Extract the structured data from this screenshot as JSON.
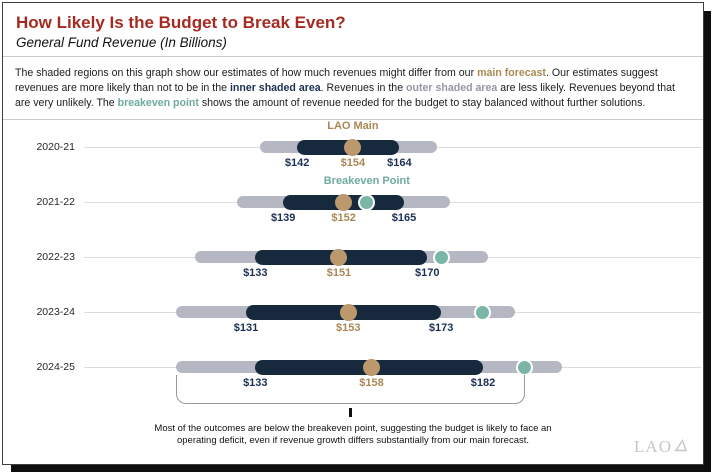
{
  "header": {
    "title": "How Likely Is the Budget to Break Even?",
    "subtitle": "General Fund Revenue (In Billions)"
  },
  "intro": {
    "segments": [
      {
        "text": "The shaded regions on this graph show our estimates of how much revenues might differ from our ",
        "style": "plain"
      },
      {
        "text": "main forecast",
        "style": "main"
      },
      {
        "text": ". Our estimates suggest revenues are more likely than not to be in the ",
        "style": "plain"
      },
      {
        "text": "inner shaded area",
        "style": "inner"
      },
      {
        "text": ". Revenues in the ",
        "style": "plain"
      },
      {
        "text": "outer shaded area",
        "style": "outer"
      },
      {
        "text": " are less likely. Revenues beyond that are very unlikely. The ",
        "style": "plain"
      },
      {
        "text": "breakeven point",
        "style": "breakeven"
      },
      {
        "text": " shows the amount of revenue needed for the budget to stay balanced without further solutions.",
        "style": "plain"
      }
    ]
  },
  "chart_data": {
    "type": "bar",
    "subtype": "horizontal-range-fan",
    "unit": "General Fund revenue, $ billions",
    "axis": {
      "orientation": "horizontal",
      "value_domain": [
        100,
        230
      ],
      "gridlines": false,
      "tick_labels": "none (values labeled on bars)"
    },
    "rows": [
      {
        "year": "2020-21",
        "annotation": {
          "text": "LAO Main",
          "color_role": "main",
          "anchor_value": 154
        },
        "outer_range_est": [
          134,
          172
        ],
        "inner_range": [
          142,
          164
        ],
        "main_forecast": 154,
        "breakeven_point_est": null,
        "labels": {
          "inner_min": "$142",
          "main": "$154",
          "inner_max": "$164"
        }
      },
      {
        "year": "2021-22",
        "annotation": {
          "text": "Breakeven Point",
          "color_role": "breakeven",
          "anchor_value": 157
        },
        "outer_range_est": [
          129,
          175
        ],
        "inner_range": [
          139,
          165
        ],
        "main_forecast": 152,
        "breakeven_point_est": 157,
        "labels": {
          "inner_min": "$139",
          "main": "$152",
          "inner_max": "$165"
        }
      },
      {
        "year": "2022-23",
        "annotation": null,
        "outer_range_est": [
          120,
          183
        ],
        "inner_range": [
          133,
          170
        ],
        "main_forecast": 151,
        "breakeven_point_est": 173,
        "labels": {
          "inner_min": "$133",
          "main": "$151",
          "inner_max": "$170"
        }
      },
      {
        "year": "2023-24",
        "annotation": null,
        "outer_range_est": [
          116,
          189
        ],
        "inner_range": [
          131,
          173
        ],
        "main_forecast": 153,
        "breakeven_point_est": 182,
        "labels": {
          "inner_min": "$131",
          "main": "$153",
          "inner_max": "$173"
        }
      },
      {
        "year": "2024-25",
        "annotation": null,
        "outer_range_est": [
          116,
          199
        ],
        "inner_range": [
          133,
          182
        ],
        "main_forecast": 158,
        "breakeven_point_est": 191,
        "labels": {
          "inner_min": "$133",
          "main": "$158",
          "inner_max": "$182"
        }
      }
    ],
    "bracket": {
      "from_value": 116,
      "to_value": 191
    },
    "colors": {
      "title_red": "#a52b22",
      "inner_navy": "#17293d",
      "outer_gray": "#b5b7c3",
      "main_tan": "#bc996c",
      "breakeven_teal": "#7ab5a6",
      "tan_text": "#a98855",
      "navy_text": "#1d3054",
      "gray_text": "#9597a3",
      "teal_text": "#6fab9f"
    }
  },
  "footnote": {
    "text": "Most of the outcomes are below the breakeven point, suggesting the budget is likely to face an operating deficit, even if revenue growth differs substantially from our main forecast."
  },
  "logo": {
    "text": "LAO"
  }
}
